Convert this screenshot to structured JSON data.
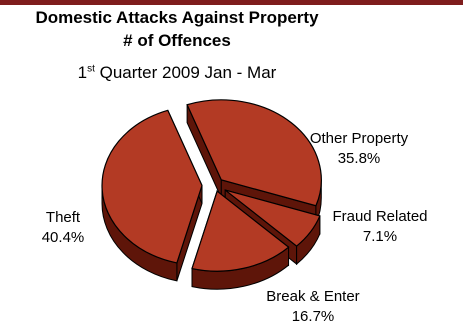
{
  "header": {
    "title_line1": "Domestic Attacks Against Property",
    "title_line2": "# of Offences",
    "subtitle_prefix": "1",
    "subtitle_sup": "st",
    "subtitle_rest": " Quarter 2009 Jan - Mar"
  },
  "colors": {
    "slice_top": "#b33a24",
    "slice_side": "#5e1509",
    "outline": "#000000",
    "top_bar": "#7f1d1d"
  },
  "chart_data": {
    "type": "pie",
    "title": "Domestic Attacks Against Property # of Offences",
    "subtitle": "1st Quarter 2009 Jan - Mar",
    "style": "3d-exploded",
    "slices": [
      {
        "label": "Other Property",
        "value": 35.8,
        "value_label": "35.8%"
      },
      {
        "label": "Fraud Related",
        "value": 7.1,
        "value_label": "7.1%"
      },
      {
        "label": "Break & Enter",
        "value": 16.7,
        "value_label": "16.7%"
      },
      {
        "label": "Theft",
        "value": 40.4,
        "value_label": "40.4%"
      }
    ]
  }
}
